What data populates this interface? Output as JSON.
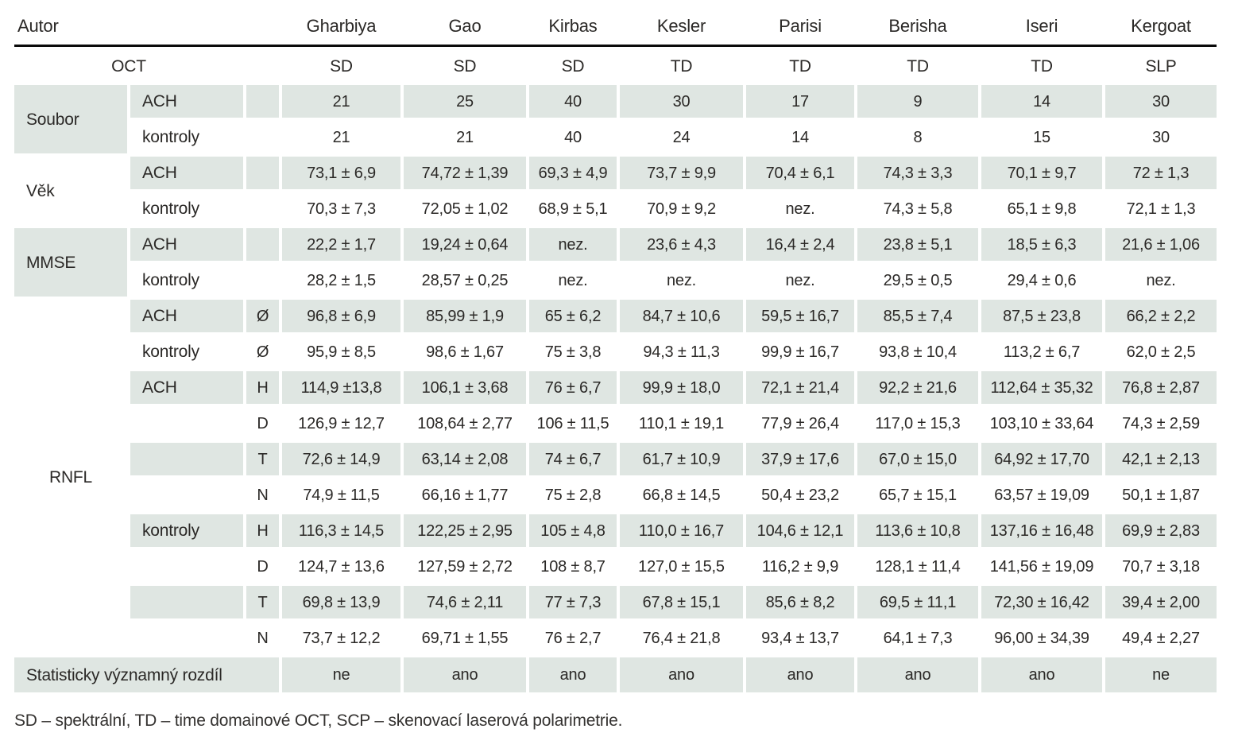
{
  "colors": {
    "shade": "#dfe6e2",
    "rule": "#0a0a0a",
    "text": "#2b2927"
  },
  "table": {
    "corner_label": "Autor",
    "columns": [
      "Gharbiya",
      "Gao",
      "Kirbas",
      "Kesler",
      "Parisi",
      "Berisha",
      "Iseri",
      "Kergoat"
    ],
    "oct_label": "OCT",
    "oct_values": [
      "SD",
      "SD",
      "SD",
      "TD",
      "TD",
      "TD",
      "TD",
      "SLP"
    ],
    "rows": [
      {
        "group": "Soubor",
        "group_span": 2,
        "group_shaded": true,
        "shaded": true,
        "sub": "ACH",
        "param": "",
        "values": [
          "21",
          "25",
          "40",
          "30",
          "17",
          "9",
          "14",
          "30"
        ]
      },
      {
        "shaded": false,
        "sub": "kontroly",
        "param": "",
        "values": [
          "21",
          "21",
          "40",
          "24",
          "14",
          "8",
          "15",
          "30"
        ]
      },
      {
        "group": "Věk",
        "group_span": 2,
        "group_shaded": false,
        "shaded": true,
        "sub": "ACH",
        "param": "",
        "values": [
          "73,1 ± 6,9",
          "74,72 ± 1,39",
          "69,3 ± 4,9",
          "73,7 ± 9,9",
          "70,4 ± 6,1",
          "74,3 ± 3,3",
          "70,1 ± 9,7",
          "72 ± 1,3"
        ]
      },
      {
        "shaded": false,
        "sub": "kontroly",
        "param": "",
        "values": [
          "70,3 ± 7,3",
          "72,05 ± 1,02",
          "68,9 ± 5,1",
          "70,9 ± 9,2",
          "nez.",
          "74,3 ± 5,8",
          "65,1 ± 9,8",
          "72,1 ± 1,3"
        ]
      },
      {
        "group": "MMSE",
        "group_span": 2,
        "group_shaded": true,
        "shaded": true,
        "sub": "ACH",
        "param": "",
        "values": [
          "22,2 ± 1,7",
          "19,24 ± 0,64",
          "nez.",
          "23,6 ± 4,3",
          "16,4 ± 2,4",
          "23,8 ± 5,1",
          "18,5 ± 6,3",
          "21,6 ± 1,06"
        ]
      },
      {
        "shaded": false,
        "sub": "kontroly",
        "param": "",
        "values": [
          "28,2 ± 1,5",
          "28,57 ± 0,25",
          "nez.",
          "nez.",
          "nez.",
          "29,5 ± 0,5",
          "29,4 ± 0,6",
          "nez."
        ]
      },
      {
        "group": "RNFL",
        "group_span": 10,
        "group_shaded": false,
        "shaded": true,
        "sub": "ACH",
        "param": "Ø",
        "values": [
          "96,8 ± 6,9",
          "85,99 ± 1,9",
          "65 ± 6,2",
          "84,7 ± 10,6",
          "59,5 ± 16,7",
          "85,5 ± 7,4",
          "87,5 ± 23,8",
          "66,2 ± 2,2"
        ]
      },
      {
        "shaded": false,
        "sub": "kontroly",
        "param": "Ø",
        "values": [
          "95,9 ± 8,5",
          "98,6 ± 1,67",
          "75 ± 3,8",
          "94,3 ± 11,3",
          "99,9 ± 16,7",
          "93,8 ± 10,4",
          "113,2 ± 6,7",
          "62,0 ± 2,5"
        ]
      },
      {
        "shaded": true,
        "sub": "ACH",
        "param": "H",
        "values": [
          "114,9 ±13,8",
          "106,1 ± 3,68",
          "76 ± 6,7",
          "99,9 ± 18,0",
          "72,1 ± 21,4",
          "92,2 ± 21,6",
          "112,64 ± 35,32",
          "76,8 ± 2,87"
        ]
      },
      {
        "shaded": false,
        "sub": "",
        "param": "D",
        "values": [
          "126,9 ± 12,7",
          "108,64 ± 2,77",
          "106 ± 11,5",
          "110,1 ± 19,1",
          "77,9 ± 26,4",
          "117,0 ± 15,3",
          "103,10 ± 33,64",
          "74,3 ± 2,59"
        ]
      },
      {
        "shaded": true,
        "sub": "",
        "param": "T",
        "values": [
          "72,6 ± 14,9",
          "63,14 ± 2,08",
          "74 ± 6,7",
          "61,7 ± 10,9",
          "37,9 ± 17,6",
          "67,0 ± 15,0",
          "64,92 ± 17,70",
          "42,1 ± 2,13"
        ]
      },
      {
        "shaded": false,
        "sub": "",
        "param": "N",
        "values": [
          "74,9 ± 11,5",
          "66,16 ± 1,77",
          "75 ± 2,8",
          "66,8 ± 14,5",
          "50,4 ± 23,2",
          "65,7 ± 15,1",
          "63,57 ± 19,09",
          "50,1 ± 1,87"
        ]
      },
      {
        "shaded": true,
        "sub": "kontroly",
        "param": "H",
        "values": [
          "116,3 ± 14,5",
          "122,25 ± 2,95",
          "105 ± 4,8",
          "110,0 ± 16,7",
          "104,6 ± 12,1",
          "113,6 ± 10,8",
          "137,16 ± 16,48",
          "69,9 ± 2,83"
        ]
      },
      {
        "shaded": false,
        "sub": "",
        "param": "D",
        "values": [
          "124,7 ± 13,6",
          "127,59 ± 2,72",
          "108 ± 8,7",
          "127,0 ± 15,5",
          "116,2 ± 9,9",
          "128,1 ± 11,4",
          "141,56 ± 19,09",
          "70,7 ± 3,18"
        ]
      },
      {
        "shaded": true,
        "sub": "",
        "param": "T",
        "values": [
          "69,8 ± 13,9",
          "74,6 ± 2,11",
          "77 ± 7,3",
          "67,8 ± 15,1",
          "85,6 ± 8,2",
          "69,5 ± 11,1",
          "72,30 ± 16,42",
          "39,4 ± 2,00"
        ]
      },
      {
        "shaded": false,
        "sub": "",
        "param": "N",
        "values": [
          "73,7 ± 12,2",
          "69,71 ± 1,55",
          "76 ± 2,7",
          "76,4 ± 21,8",
          "93,4 ± 13,7",
          "64,1 ± 7,3",
          "96,00 ± 34,39",
          "49,4 ± 2,27"
        ]
      }
    ],
    "stat": {
      "label": "Statisticky významný rozdíl",
      "values": [
        "ne",
        "ano",
        "ano",
        "ano",
        "ano",
        "ano",
        "ano",
        "ne"
      ]
    },
    "footnote": "SD – spektrální, TD – time domainové OCT, SCP – skenovací laserová polarimetrie."
  }
}
